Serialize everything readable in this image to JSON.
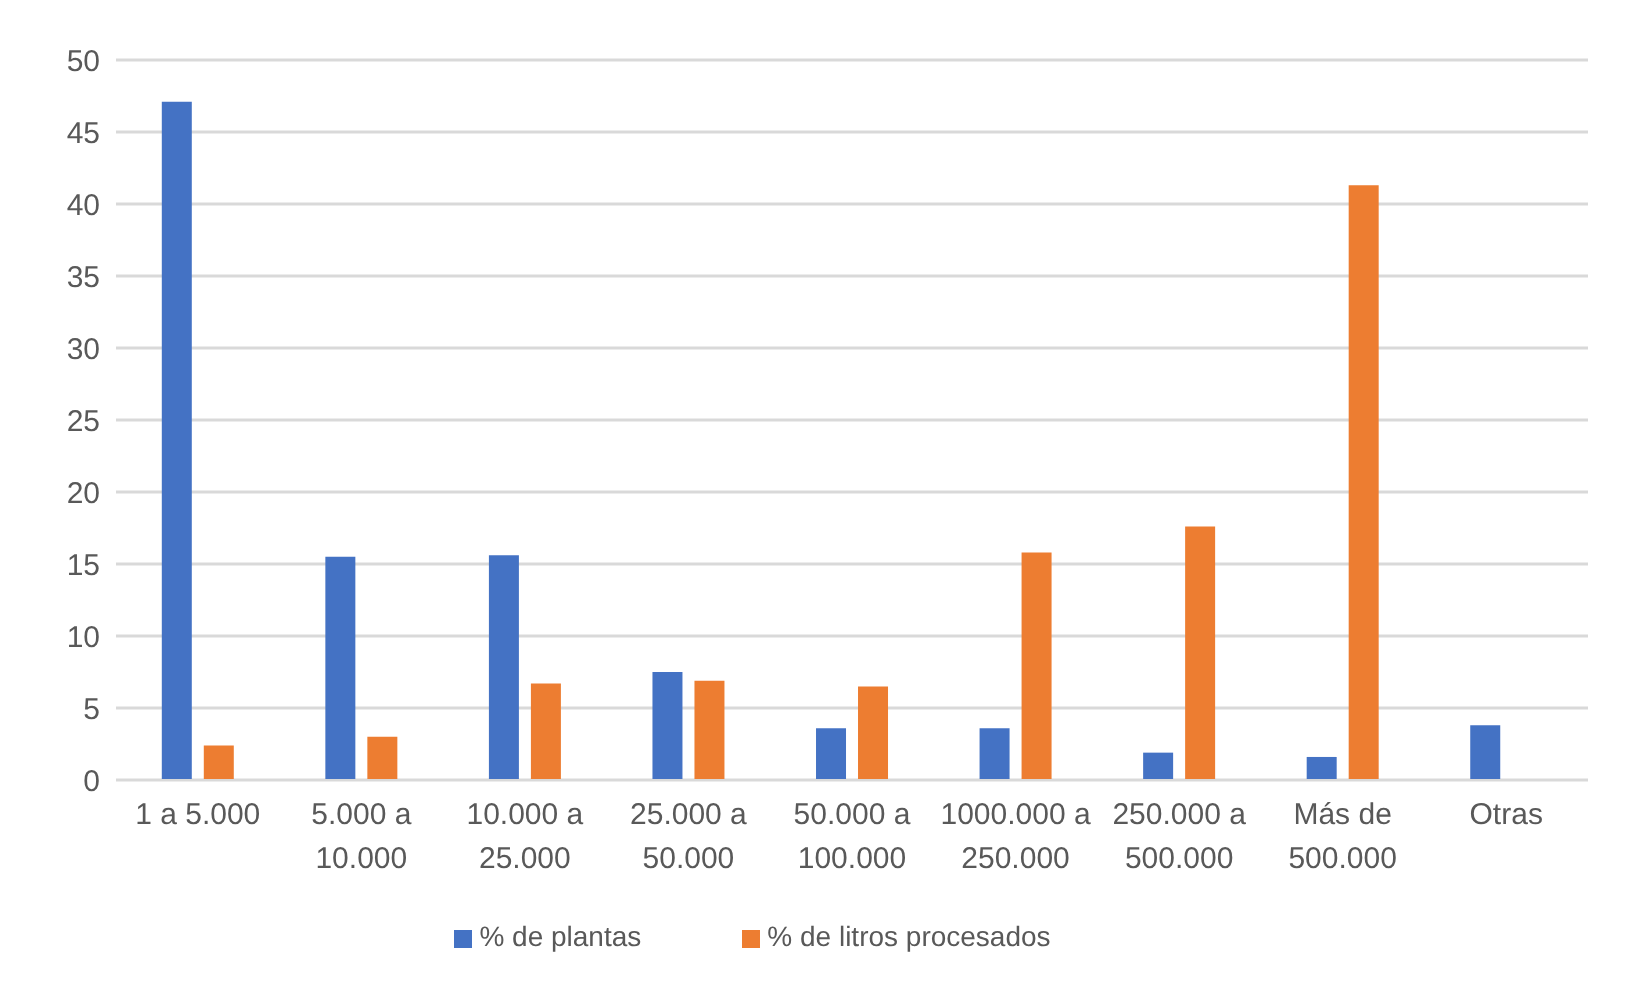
{
  "chart_data": {
    "type": "bar",
    "categories": [
      "1 a 5.000",
      "5.000 a 10.000",
      "10.000 a 25.000",
      "25.000 a 50.000",
      "50.000 a 100.000",
      "1000.000 a 250.000",
      "250.000 a 500.000",
      "Más de 500.000",
      "Otras"
    ],
    "series": [
      {
        "name": "% de plantas",
        "color": "#4472c4",
        "values": [
          47.1,
          15.5,
          15.6,
          7.5,
          3.6,
          3.6,
          1.9,
          1.6,
          3.8
        ]
      },
      {
        "name": "% de litros procesados",
        "color": "#ed7d31",
        "values": [
          2.4,
          3.0,
          6.7,
          6.9,
          6.5,
          15.8,
          17.6,
          41.3,
          null
        ]
      }
    ],
    "ylim": [
      0,
      50
    ],
    "yticks": [
      0,
      5,
      10,
      15,
      20,
      25,
      30,
      35,
      40,
      45,
      50
    ],
    "grid": "y",
    "legend": "bottom"
  }
}
